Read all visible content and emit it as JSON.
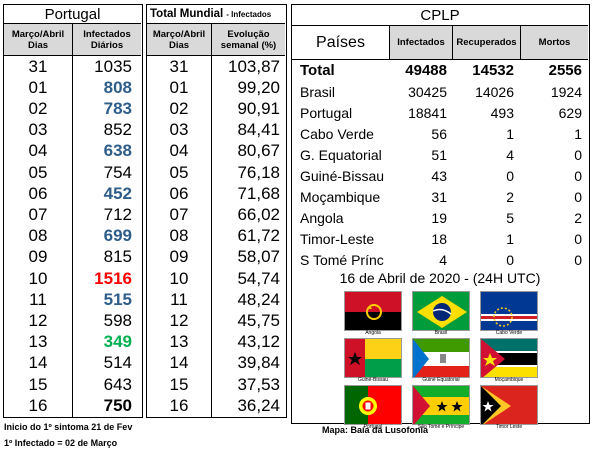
{
  "portugal": {
    "title": "Portugal",
    "col1_header": "Março/Abril Dias",
    "col2_header": "Infectados Diários",
    "rows": [
      {
        "day": "31",
        "value": "1035",
        "color": "#000000",
        "bold": false
      },
      {
        "day": "01",
        "value": "808",
        "color": "#2e5d8a",
        "bold": true
      },
      {
        "day": "02",
        "value": "783",
        "color": "#2e5d8a",
        "bold": true
      },
      {
        "day": "03",
        "value": "852",
        "color": "#000000",
        "bold": false
      },
      {
        "day": "04",
        "value": "638",
        "color": "#2e5d8a",
        "bold": true
      },
      {
        "day": "05",
        "value": "754",
        "color": "#000000",
        "bold": false
      },
      {
        "day": "06",
        "value": "452",
        "color": "#2e5d8a",
        "bold": true
      },
      {
        "day": "07",
        "value": "712",
        "color": "#000000",
        "bold": false
      },
      {
        "day": "08",
        "value": "699",
        "color": "#2e5d8a",
        "bold": true
      },
      {
        "day": "09",
        "value": "815",
        "color": "#000000",
        "bold": false
      },
      {
        "day": "10",
        "value": "1516",
        "color": "#ff0000",
        "bold": true
      },
      {
        "day": "11",
        "value": "515",
        "color": "#2e5d8a",
        "bold": true
      },
      {
        "day": "12",
        "value": "598",
        "color": "#000000",
        "bold": false
      },
      {
        "day": "13",
        "value": "349",
        "color": "#00b050",
        "bold": true
      },
      {
        "day": "14",
        "value": "514",
        "color": "#000000",
        "bold": false
      },
      {
        "day": "15",
        "value": "643",
        "color": "#000000",
        "bold": false
      },
      {
        "day": "16",
        "value": "750",
        "color": "#000000",
        "bold": true
      }
    ]
  },
  "world": {
    "title": "Total Mundial",
    "subtitle": "- Infectados",
    "col1_header": "Março/Abril Dias",
    "col2_header": "Evolução semanal (%)",
    "rows": [
      {
        "day": "31",
        "value": "103,87"
      },
      {
        "day": "01",
        "value": "99,20"
      },
      {
        "day": "02",
        "value": "90,91"
      },
      {
        "day": "03",
        "value": "84,41"
      },
      {
        "day": "04",
        "value": "80,67"
      },
      {
        "day": "05",
        "value": "76,18"
      },
      {
        "day": "06",
        "value": "71,68"
      },
      {
        "day": "07",
        "value": "66,02"
      },
      {
        "day": "08",
        "value": "61,72"
      },
      {
        "day": "09",
        "value": "58,07"
      },
      {
        "day": "10",
        "value": "54,74"
      },
      {
        "day": "11",
        "value": "48,24"
      },
      {
        "day": "12",
        "value": "45,75"
      },
      {
        "day": "13",
        "value": "43,12"
      },
      {
        "day": "14",
        "value": "39,84"
      },
      {
        "day": "15",
        "value": "37,53"
      },
      {
        "day": "16",
        "value": "36,24"
      }
    ]
  },
  "cplp": {
    "title": "CPLP",
    "headers": {
      "country": "Países",
      "infected": "Infectados",
      "recovered": "Recuperados",
      "deaths": "Mortos"
    },
    "rows": [
      {
        "country": "Total",
        "infected": "49488",
        "recovered": "14532",
        "deaths": "2556",
        "bold": true
      },
      {
        "country": "Brasil",
        "infected": "30425",
        "recovered": "14026",
        "deaths": "1924",
        "bold": false
      },
      {
        "country": "Portugal",
        "infected": "18841",
        "recovered": "493",
        "deaths": "629",
        "bold": false
      },
      {
        "country": "Cabo Verde",
        "infected": "56",
        "recovered": "1",
        "deaths": "1",
        "bold": false
      },
      {
        "country": "G. Equatorial",
        "infected": "51",
        "recovered": "4",
        "deaths": "0",
        "bold": false
      },
      {
        "country": "Guiné-Bissau",
        "infected": "43",
        "recovered": "0",
        "deaths": "0",
        "bold": false
      },
      {
        "country": "Moçambique",
        "infected": "31",
        "recovered": "2",
        "deaths": "0",
        "bold": false
      },
      {
        "country": "Angola",
        "infected": "19",
        "recovered": "5",
        "deaths": "2",
        "bold": false
      },
      {
        "country": "Timor-Leste",
        "infected": "18",
        "recovered": "1",
        "deaths": "0",
        "bold": false
      },
      {
        "country": "S Tomé Prínc",
        "infected": "4",
        "recovered": "0",
        "deaths": "0",
        "bold": false
      }
    ],
    "date_caption": "16 de Abril de 2020 - (24H UTC)",
    "flags": [
      {
        "name": "Angola",
        "icon": "angola-flag"
      },
      {
        "name": "Brasil",
        "icon": "brasil-flag"
      },
      {
        "name": "Cabo Verde",
        "icon": "cabo-verde-flag"
      },
      {
        "name": "Guiné-Bissau",
        "icon": "guine-bissau-flag"
      },
      {
        "name": "Guiné Equatorial",
        "icon": "guine-equatorial-flag"
      },
      {
        "name": "Moçambique",
        "icon": "mocambique-flag"
      },
      {
        "name": "Portugal",
        "icon": "portugal-flag"
      },
      {
        "name": "São Tomé e Príncipe",
        "icon": "sao-tome-flag"
      },
      {
        "name": "Timor Leste",
        "icon": "timor-leste-flag"
      }
    ]
  },
  "footer": {
    "line1": "Inicio do 1º sintoma 21 de Fev",
    "line2": "1º Infectado = 02 de Março",
    "map_note": "Mapa: Baía da Lusofonia"
  }
}
